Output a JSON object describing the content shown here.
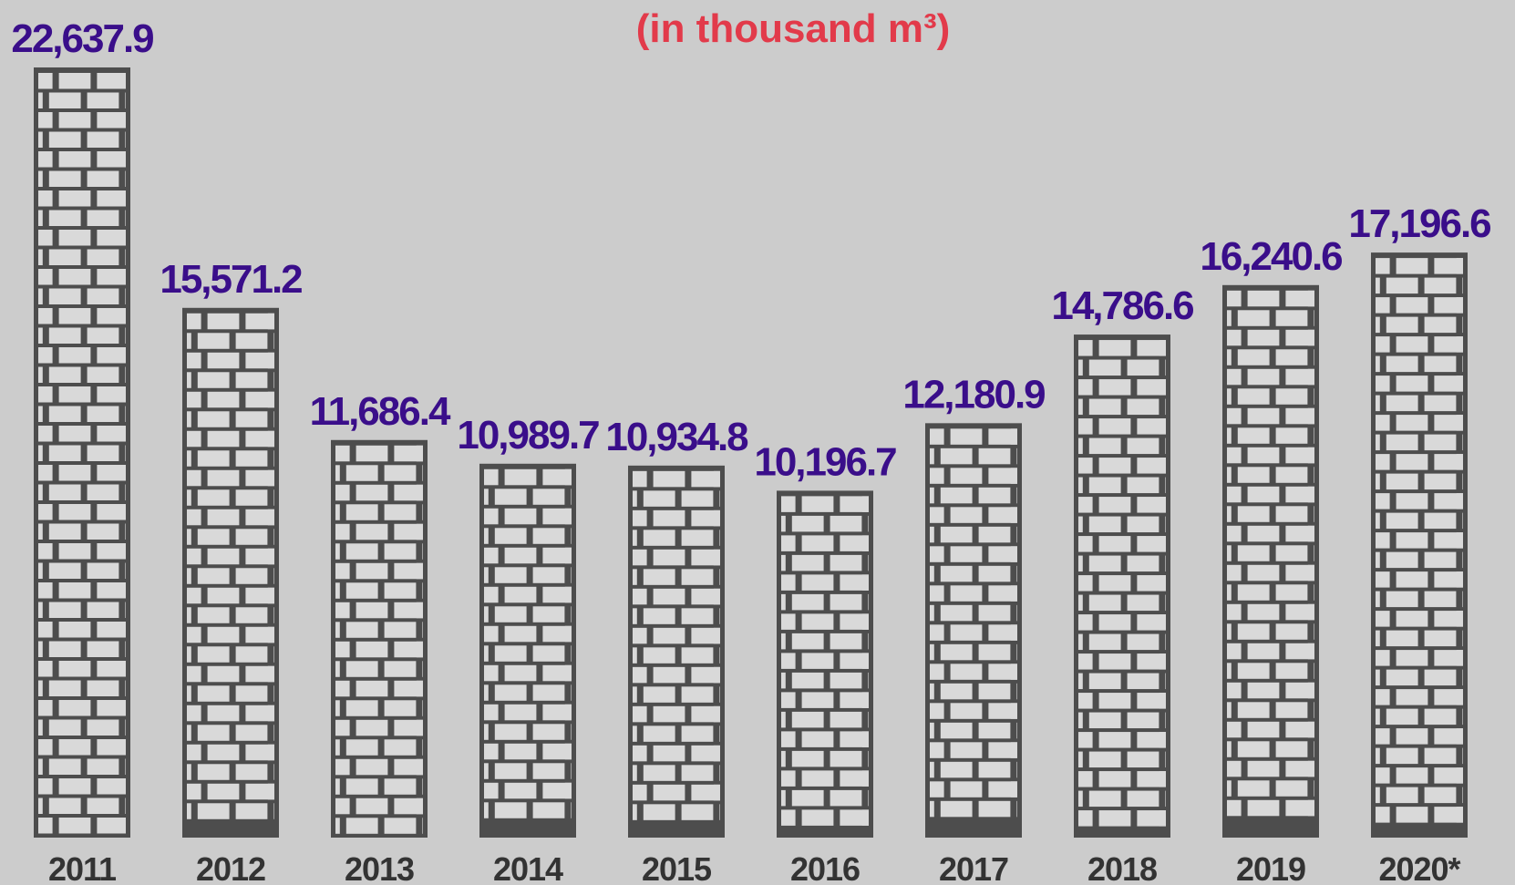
{
  "chart_data": {
    "type": "bar",
    "subtitle": "(in thousand m³)",
    "categories": [
      "2011",
      "2012",
      "2013",
      "2014",
      "2015",
      "2016",
      "2017",
      "2018",
      "2019",
      "2020*"
    ],
    "values": [
      22637.9,
      15571.2,
      11686.4,
      10989.7,
      10934.8,
      10196.7,
      12180.9,
      14786.6,
      16240.6,
      17196.6
    ],
    "value_labels": [
      "22,637.9",
      "15,571.2",
      "11,686.4",
      "10,989.7",
      "10,934.8",
      "10,196.7",
      "12,180.9",
      "14,786.6",
      "16,240.6",
      "17,196.6"
    ],
    "ylim": [
      0,
      22637.9
    ],
    "grid": false,
    "legend": "none",
    "colors": {
      "background": "#cccccc",
      "bar": "#4d4d4d",
      "brick": "#d9d9d9",
      "value_label": "#3a0e8a",
      "subtitle": "#e23a4a",
      "year_label": "#333333"
    }
  }
}
